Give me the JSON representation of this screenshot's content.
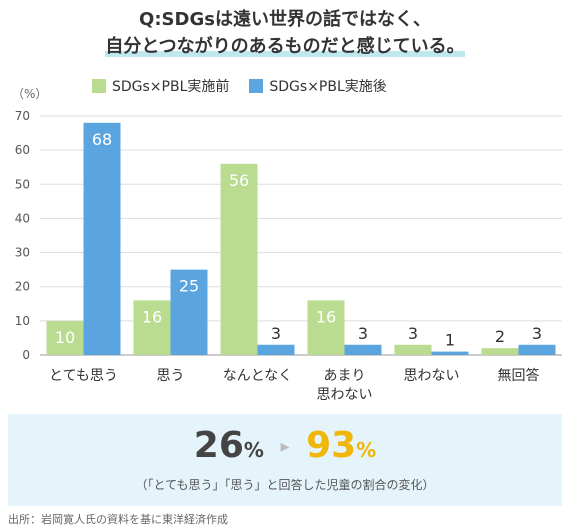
{
  "title": {
    "line1": "Q:SDGsは遠い世界の話ではなく、",
    "line2": "自分とつながりのあるものだと感じている。"
  },
  "legend": {
    "before": "SDGs×PBL実施前",
    "after": "SDGs×PBL実施後"
  },
  "colors": {
    "before": "#b9dc91",
    "after": "#5aa5e0",
    "highlight": "#f0b60a",
    "panel": "#e5f4fb"
  },
  "chart_data": {
    "type": "bar",
    "unit_label": "（%）",
    "categories": [
      "とても思う",
      "思う",
      "なんとなく",
      "あまり\n思わない",
      "思わない",
      "無回答"
    ],
    "series": [
      {
        "name": "SDGs×PBL実施前",
        "values": [
          10,
          16,
          56,
          16,
          3,
          2
        ]
      },
      {
        "name": "SDGs×PBL実施後",
        "values": [
          68,
          25,
          3,
          3,
          1,
          3
        ]
      }
    ],
    "ylim": [
      0,
      70
    ],
    "yticks": [
      0,
      10,
      20,
      30,
      40,
      50,
      60,
      70
    ],
    "grid": true
  },
  "summary": {
    "before_value": "26",
    "after_value": "93",
    "percent": "%",
    "arrow": "▸",
    "note": "（「とても思う」「思う」と回答した児童の割合の変化）"
  },
  "source": "出所：岩岡寛人氏の資料を基に東洋経済作成"
}
